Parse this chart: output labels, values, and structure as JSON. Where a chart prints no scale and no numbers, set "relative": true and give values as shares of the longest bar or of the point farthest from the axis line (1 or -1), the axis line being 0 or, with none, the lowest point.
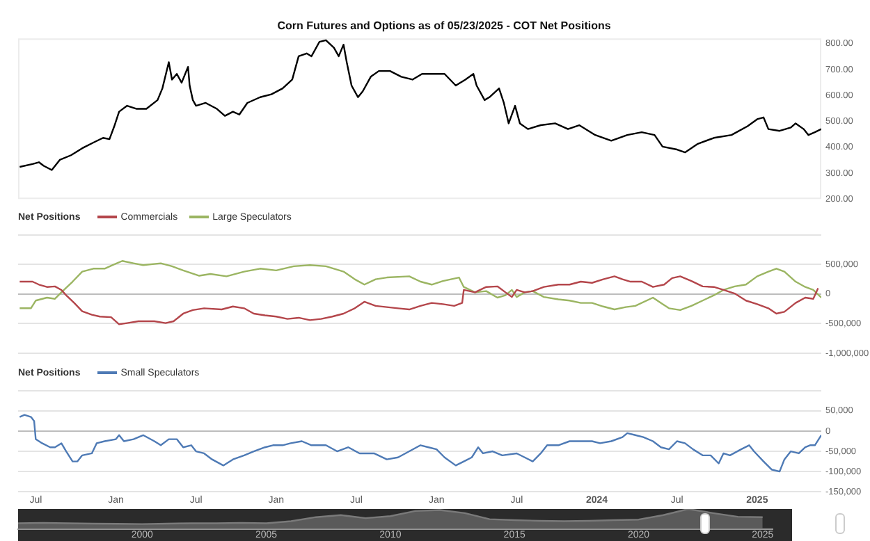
{
  "chart_data": [
    {
      "type": "line",
      "title": "Corn Futures and Options as of 05/23/2025 - COT Net Positions",
      "xlim": [
        2020.39,
        2025.4
      ],
      "ylim": [
        200,
        820
      ],
      "yticks": [
        {
          "value": 200,
          "label": "200.00"
        },
        {
          "value": 300,
          "label": "300.00"
        },
        {
          "value": 400,
          "label": "400.00"
        },
        {
          "value": 500,
          "label": "500.00"
        },
        {
          "value": 600,
          "label": "600.00"
        },
        {
          "value": 700,
          "label": "700.00"
        },
        {
          "value": 800,
          "label": "800.00"
        }
      ],
      "tick_labels": "y",
      "grid": false,
      "legend": false,
      "series": [
        {
          "color": "#000000",
          "x": [
            2020.4,
            2020.48,
            2020.52,
            2020.55,
            2020.6,
            2020.65,
            2020.72,
            2020.79,
            2020.86,
            2020.92,
            2020.96,
            2020.99,
            2021.02,
            2021.07,
            2021.13,
            2021.19,
            2021.26,
            2021.29,
            2021.33,
            2021.35,
            2021.38,
            2021.41,
            2021.45,
            2021.46,
            2021.48,
            2021.5,
            2021.56,
            2021.63,
            2021.68,
            2021.73,
            2021.77,
            2021.82,
            2021.9,
            2021.97,
            2022.04,
            2022.1,
            2022.14,
            2022.19,
            2022.22,
            2022.27,
            2022.31,
            2022.36,
            2022.39,
            2022.42,
            2022.44,
            2022.47,
            2022.51,
            2022.54,
            2022.59,
            2022.64,
            2022.71,
            2022.78,
            2022.85,
            2022.91,
            2022.98,
            2023.05,
            2023.12,
            2023.18,
            2023.23,
            2023.25,
            2023.3,
            2023.33,
            2023.39,
            2023.42,
            2023.45,
            2023.49,
            2023.52,
            2023.57,
            2023.65,
            2023.74,
            2023.82,
            2023.89,
            2023.99,
            2024.09,
            2024.19,
            2024.28,
            2024.36,
            2024.41,
            2024.5,
            2024.55,
            2024.63,
            2024.73,
            2024.84,
            2024.94,
            2025.0,
            2025.04,
            2025.07,
            2025.14,
            2025.21,
            2025.24,
            2025.29,
            2025.32,
            2025.36,
            2025.4
          ],
          "values": [
            324,
            335,
            342,
            328,
            312,
            351,
            369,
            396,
            418,
            436,
            431,
            481,
            537,
            560,
            548,
            548,
            582,
            627,
            728,
            661,
            683,
            649,
            710,
            638,
            582,
            560,
            571,
            548,
            521,
            537,
            526,
            571,
            593,
            604,
            627,
            661,
            751,
            762,
            751,
            807,
            813,
            784,
            751,
            796,
            728,
            638,
            593,
            616,
            672,
            694,
            694,
            672,
            661,
            683,
            683,
            683,
            638,
            661,
            683,
            638,
            582,
            593,
            627,
            571,
            492,
            560,
            492,
            470,
            485,
            492,
            470,
            485,
            447,
            425,
            447,
            458,
            447,
            402,
            391,
            380,
            413,
            436,
            447,
            481,
            508,
            515,
            470,
            463,
            476,
            492,
            470,
            447,
            458,
            470
          ]
        }
      ]
    },
    {
      "type": "line",
      "legend_title": "Net Positions",
      "legend": "top left",
      "xlim": [
        2020.39,
        2025.4
      ],
      "ylim": [
        -1000000,
        1000000
      ],
      "yticks": [
        {
          "value": -1000000,
          "label": "-1,000,000"
        },
        {
          "value": -500000,
          "label": "-500,000"
        },
        0,
        {
          "value": 500000,
          "label": "500,000"
        },
        {
          "value": 1000000,
          "label": null
        }
      ],
      "tick_labels": "y",
      "grid": "y",
      "series": [
        {
          "name": "Commercials",
          "color": "#b4464b",
          "x": [
            2020.4,
            2020.48,
            2020.52,
            2020.57,
            2020.62,
            2020.66,
            2020.69,
            2020.74,
            2020.79,
            2020.85,
            2020.9,
            2020.97,
            2021.02,
            2021.07,
            2021.14,
            2021.24,
            2021.31,
            2021.36,
            2021.42,
            2021.48,
            2021.55,
            2021.66,
            2021.73,
            2021.8,
            2021.86,
            2021.93,
            2022.0,
            2022.07,
            2022.14,
            2022.21,
            2022.28,
            2022.35,
            2022.42,
            2022.49,
            2022.55,
            2022.62,
            2022.69,
            2022.76,
            2022.83,
            2022.9,
            2022.97,
            2023.04,
            2023.11,
            2023.16,
            2023.17,
            2023.24,
            2023.31,
            2023.38,
            2023.43,
            2023.47,
            2023.5,
            2023.55,
            2023.6,
            2023.67,
            2023.76,
            2023.83,
            2023.9,
            2023.97,
            2024.04,
            2024.11,
            2024.16,
            2024.21,
            2024.28,
            2024.35,
            2024.42,
            2024.47,
            2024.52,
            2024.59,
            2024.66,
            2024.73,
            2024.79,
            2024.86,
            2024.93,
            2025.0,
            2025.07,
            2025.12,
            2025.17,
            2025.24,
            2025.3,
            2025.35,
            2025.38
          ],
          "values": [
            210000,
            210000,
            160000,
            120000,
            130000,
            70000,
            -20000,
            -150000,
            -290000,
            -350000,
            -380000,
            -390000,
            -510000,
            -490000,
            -460000,
            -460000,
            -490000,
            -460000,
            -330000,
            -270000,
            -240000,
            -260000,
            -210000,
            -240000,
            -330000,
            -360000,
            -380000,
            -420000,
            -400000,
            -440000,
            -420000,
            -380000,
            -330000,
            -240000,
            -130000,
            -200000,
            -220000,
            -240000,
            -260000,
            -200000,
            -150000,
            -170000,
            -200000,
            -150000,
            70000,
            30000,
            120000,
            130000,
            30000,
            -50000,
            70000,
            30000,
            50000,
            120000,
            160000,
            160000,
            210000,
            190000,
            250000,
            300000,
            250000,
            210000,
            210000,
            120000,
            160000,
            270000,
            300000,
            220000,
            130000,
            120000,
            70000,
            10000,
            -110000,
            -170000,
            -240000,
            -330000,
            -300000,
            -150000,
            -60000,
            -80000,
            100000
          ]
        },
        {
          "name": "Large Speculators",
          "color": "#9bb562",
          "x": [
            2020.4,
            2020.47,
            2020.5,
            2020.57,
            2020.62,
            2020.66,
            2020.73,
            2020.79,
            2020.86,
            2020.93,
            2020.98,
            2021.04,
            2021.11,
            2021.17,
            2021.28,
            2021.35,
            2021.42,
            2021.52,
            2021.59,
            2021.69,
            2021.8,
            2021.9,
            2022.0,
            2022.11,
            2022.21,
            2022.31,
            2022.42,
            2022.49,
            2022.55,
            2022.62,
            2022.69,
            2022.83,
            2022.9,
            2022.97,
            2023.04,
            2023.14,
            2023.17,
            2023.24,
            2023.31,
            2023.38,
            2023.43,
            2023.47,
            2023.5,
            2023.55,
            2023.6,
            2023.67,
            2023.76,
            2023.83,
            2023.9,
            2023.97,
            2024.04,
            2024.11,
            2024.18,
            2024.24,
            2024.35,
            2024.4,
            2024.45,
            2024.52,
            2024.59,
            2024.66,
            2024.73,
            2024.79,
            2024.86,
            2024.93,
            2025.0,
            2025.07,
            2025.12,
            2025.17,
            2025.24,
            2025.3,
            2025.35,
            2025.4
          ],
          "values": [
            -240000,
            -240000,
            -110000,
            -60000,
            -80000,
            30000,
            210000,
            380000,
            430000,
            430000,
            490000,
            560000,
            520000,
            490000,
            520000,
            470000,
            400000,
            310000,
            340000,
            300000,
            380000,
            430000,
            400000,
            470000,
            490000,
            470000,
            380000,
            250000,
            160000,
            250000,
            280000,
            300000,
            210000,
            160000,
            220000,
            280000,
            120000,
            30000,
            50000,
            -60000,
            -20000,
            70000,
            -50000,
            30000,
            50000,
            -50000,
            -90000,
            -110000,
            -150000,
            -150000,
            -210000,
            -260000,
            -220000,
            -200000,
            -60000,
            -150000,
            -240000,
            -270000,
            -200000,
            -110000,
            -20000,
            70000,
            130000,
            160000,
            300000,
            380000,
            430000,
            380000,
            210000,
            120000,
            70000,
            -60000
          ]
        }
      ]
    },
    {
      "type": "line",
      "legend_title": "Net Positions",
      "legend": "top left",
      "xlim": [
        2020.39,
        2025.4
      ],
      "ylim": [
        -150000,
        100000
      ],
      "yticks": [
        {
          "value": -150000,
          "label": "-150,000"
        },
        {
          "value": -100000,
          "label": "-100,000"
        },
        {
          "value": -50000,
          "label": "-50,000"
        },
        0,
        {
          "value": 50000,
          "label": "50,000"
        },
        {
          "value": 100000,
          "label": null
        }
      ],
      "xticks": [
        {
          "value": 2020.5,
          "label": "Jul"
        },
        {
          "value": 2021,
          "label": "Jan"
        },
        {
          "value": 2021.5,
          "label": "Jul"
        },
        {
          "value": 2022,
          "label": "Jan"
        },
        {
          "value": 2022.5,
          "label": "Jul"
        },
        {
          "value": 2023,
          "label": "Jan"
        },
        {
          "value": 2023.5,
          "label": "Jul"
        },
        {
          "value": 2024,
          "label": "2024"
        },
        {
          "value": 2024.5,
          "label": "Jul"
        },
        {
          "value": 2025,
          "label": "2025"
        }
      ],
      "grid": "y",
      "series": [
        {
          "name": "Small Speculators",
          "color": "#4e7ab5",
          "x": [
            2020.4,
            2020.43,
            2020.47,
            2020.49,
            2020.5,
            2020.54,
            2020.59,
            2020.62,
            2020.66,
            2020.69,
            2020.73,
            2020.76,
            2020.79,
            2020.85,
            2020.88,
            2020.93,
            2021.0,
            2021.02,
            2021.05,
            2021.11,
            2021.17,
            2021.24,
            2021.28,
            2021.33,
            2021.38,
            2021.42,
            2021.47,
            2021.5,
            2021.55,
            2021.6,
            2021.67,
            2021.73,
            2021.8,
            2021.86,
            2021.93,
            2021.98,
            2022.04,
            2022.09,
            2022.16,
            2022.22,
            2022.31,
            2022.38,
            2022.45,
            2022.52,
            2022.61,
            2022.69,
            2022.76,
            2022.83,
            2022.9,
            2022.95,
            2023.0,
            2023.05,
            2023.12,
            2023.17,
            2023.22,
            2023.26,
            2023.29,
            2023.35,
            2023.41,
            2023.5,
            2023.55,
            2023.6,
            2023.65,
            2023.69,
            2023.76,
            2023.83,
            2023.9,
            2023.97,
            2024.02,
            2024.09,
            2024.16,
            2024.19,
            2024.24,
            2024.29,
            2024.35,
            2024.4,
            2024.45,
            2024.5,
            2024.55,
            2024.6,
            2024.66,
            2024.71,
            2024.76,
            2024.79,
            2024.83,
            2024.9,
            2024.95,
            2024.98,
            2025.04,
            2025.09,
            2025.14,
            2025.17,
            2025.21,
            2025.26,
            2025.3,
            2025.33,
            2025.36,
            2025.4
          ],
          "values": [
            35000,
            40000,
            35000,
            25000,
            -20000,
            -30000,
            -40000,
            -40000,
            -30000,
            -50000,
            -75000,
            -75000,
            -60000,
            -55000,
            -30000,
            -25000,
            -20000,
            -10000,
            -25000,
            -20000,
            -10000,
            -25000,
            -35000,
            -20000,
            -20000,
            -40000,
            -35000,
            -50000,
            -55000,
            -70000,
            -85000,
            -70000,
            -60000,
            -50000,
            -40000,
            -35000,
            -35000,
            -30000,
            -25000,
            -35000,
            -35000,
            -50000,
            -40000,
            -55000,
            -55000,
            -70000,
            -65000,
            -50000,
            -35000,
            -40000,
            -45000,
            -65000,
            -85000,
            -75000,
            -65000,
            -40000,
            -55000,
            -50000,
            -60000,
            -55000,
            -65000,
            -75000,
            -55000,
            -35000,
            -35000,
            -25000,
            -25000,
            -25000,
            -30000,
            -25000,
            -15000,
            -5000,
            -10000,
            -15000,
            -25000,
            -40000,
            -45000,
            -25000,
            -30000,
            -45000,
            -60000,
            -60000,
            -80000,
            -55000,
            -60000,
            -45000,
            -35000,
            -50000,
            -75000,
            -95000,
            -100000,
            -70000,
            -50000,
            -55000,
            -40000,
            -35000,
            -35000,
            -10000
          ]
        }
      ]
    },
    {
      "type": "area",
      "relative": true,
      "xlim": [
        1995,
        2025.4
      ],
      "xticks": [
        2000,
        2005,
        2010,
        2015,
        2020,
        2025
      ],
      "tick_labels": "x",
      "grid": false,
      "legend": false,
      "series": [
        {
          "color": "#7a7a7a",
          "x": [
            1995,
            1996,
            1997,
            1998,
            1999,
            2000,
            2001,
            2002,
            2003,
            2004,
            2005,
            2006,
            2007,
            2008,
            2009,
            2010,
            2011,
            2012,
            2013,
            2014,
            2015,
            2016,
            2017,
            2018,
            2019,
            2020,
            2021,
            2022,
            2023,
            2024,
            2025
          ],
          "values": [
            0.3,
            0.32,
            0.3,
            0.28,
            0.27,
            0.26,
            0.28,
            0.3,
            0.3,
            0.32,
            0.3,
            0.4,
            0.6,
            0.7,
            0.55,
            0.65,
            0.9,
            0.95,
            0.8,
            0.5,
            0.45,
            0.42,
            0.4,
            0.42,
            0.45,
            0.48,
            0.7,
            1,
            0.8,
            0.62,
            0.6
          ]
        }
      ]
    }
  ]
}
